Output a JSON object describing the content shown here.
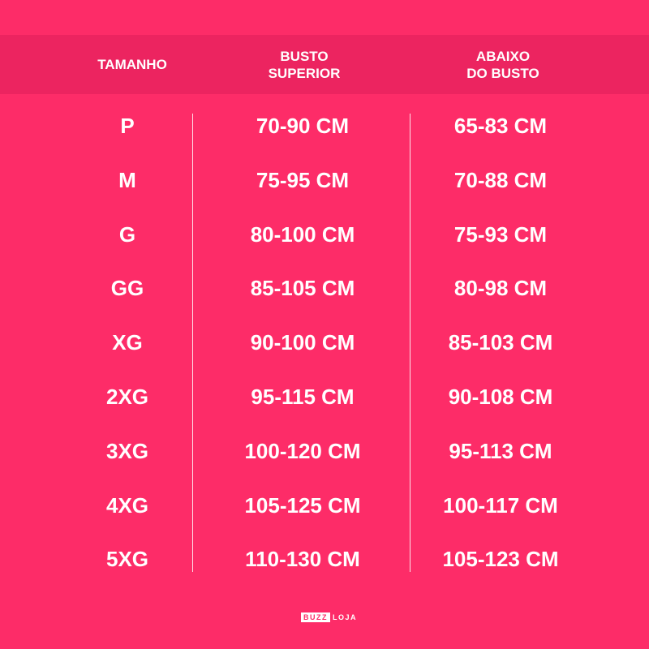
{
  "headers": {
    "size": "TAMANHO",
    "upper_bust": "BUSTO\nSUPERIOR",
    "under_bust": "ABAIXO\nDO BUSTO"
  },
  "rows": [
    {
      "size": "P",
      "upper": "70-90 CM",
      "under": "65-83 CM"
    },
    {
      "size": "M",
      "upper": "75-95 CM",
      "under": "70-88 CM"
    },
    {
      "size": "G",
      "upper": "80-100 CM",
      "under": "75-93 CM"
    },
    {
      "size": "GG",
      "upper": "85-105 CM",
      "under": "80-98 CM"
    },
    {
      "size": "XG",
      "upper": "90-100 CM",
      "under": "85-103 CM"
    },
    {
      "size": "2XG",
      "upper": "95-115 CM",
      "under": "90-108 CM"
    },
    {
      "size": "3XG",
      "upper": "100-120 CM",
      "under": "95-113 CM"
    },
    {
      "size": "4XG",
      "upper": "105-125 CM",
      "under": "100-117 CM"
    },
    {
      "size": "5XG",
      "upper": "110-130 CM",
      "under": "105-123 CM"
    }
  ],
  "logo": {
    "part1": "BUZZ",
    "part2": "LOJA"
  },
  "colors": {
    "background": "#fd2c68",
    "header": "#ec2460"
  }
}
